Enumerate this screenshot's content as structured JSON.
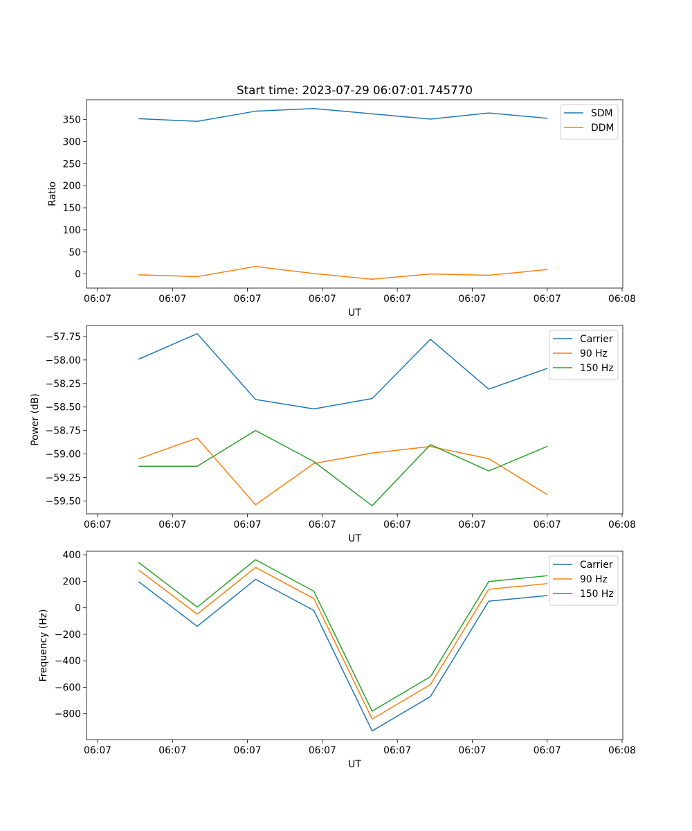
{
  "chart_data": [
    {
      "type": "line",
      "title": "Start time: 2023-07-29 06:07:01.745770",
      "xlabel": "UT",
      "ylabel": "Ratio",
      "x_tick_labels": [
        "06:07",
        "06:07",
        "06:07",
        "06:07",
        "06:07",
        "06:07",
        "06:07",
        "06:08"
      ],
      "y_ticks": [
        0,
        50,
        100,
        150,
        200,
        250,
        300,
        350
      ],
      "y_tick_labels": [
        "0",
        "50",
        "100",
        "150",
        "200",
        "250",
        "300",
        "350"
      ],
      "ylim": [
        -32,
        395
      ],
      "x": [
        1,
        2,
        3,
        4,
        5,
        6,
        7,
        8
      ],
      "xlim": [
        0.1,
        9.3
      ],
      "series": [
        {
          "name": "SDM",
          "color": "#1f77b4",
          "values": [
            352,
            346,
            369,
            375,
            363,
            351,
            365,
            353
          ]
        },
        {
          "name": "DDM",
          "color": "#ff7f0e",
          "values": [
            -2,
            -6,
            17,
            1,
            -12,
            0,
            -3,
            10
          ]
        }
      ],
      "legend": "upper right"
    },
    {
      "type": "line",
      "title": "",
      "xlabel": "UT",
      "ylabel": "Power (dB)",
      "x_tick_labels": [
        "06:07",
        "06:07",
        "06:07",
        "06:07",
        "06:07",
        "06:07",
        "06:07",
        "06:08"
      ],
      "y_ticks": [
        -59.5,
        -59.25,
        -59.0,
        -58.75,
        -58.5,
        -58.25,
        -58.0,
        -57.75
      ],
      "y_tick_labels": [
        "−59.50",
        "−59.25",
        "−59.00",
        "−58.75",
        "−58.50",
        "−58.25",
        "−58.00",
        "−57.75"
      ],
      "ylim": [
        -59.636,
        -57.633
      ],
      "x": [
        1,
        2,
        3,
        4,
        5,
        6,
        7,
        8
      ],
      "xlim": [
        0.1,
        9.3
      ],
      "series": [
        {
          "name": "Carrier",
          "color": "#1f77b4",
          "values": [
            -57.99,
            -57.72,
            -58.42,
            -58.52,
            -58.41,
            -57.78,
            -58.31,
            -58.09
          ]
        },
        {
          "name": "90 Hz",
          "color": "#ff7f0e",
          "values": [
            -59.05,
            -58.83,
            -59.54,
            -59.1,
            -58.99,
            -58.92,
            -59.05,
            -59.43
          ]
        },
        {
          "name": "150 Hz",
          "color": "#2ca02c",
          "values": [
            -59.13,
            -59.13,
            -58.75,
            -59.08,
            -59.55,
            -58.9,
            -59.18,
            -58.92
          ]
        }
      ],
      "legend": "upper right"
    },
    {
      "type": "line",
      "title": "",
      "xlabel": "UT",
      "ylabel": "Frequency (Hz)",
      "x_tick_labels": [
        "06:07",
        "06:07",
        "06:07",
        "06:07",
        "06:07",
        "06:07",
        "06:07",
        "06:08"
      ],
      "y_ticks": [
        -800,
        -600,
        -400,
        -200,
        0,
        200,
        400
      ],
      "y_tick_labels": [
        "−800",
        "−600",
        "−400",
        "−200",
        "0",
        "200",
        "400"
      ],
      "ylim": [
        -995,
        427
      ],
      "x": [
        1,
        2,
        3,
        4,
        5,
        6,
        7,
        8
      ],
      "xlim": [
        0.1,
        9.3
      ],
      "series": [
        {
          "name": "Carrier",
          "color": "#1f77b4",
          "values": [
            195,
            -140,
            215,
            -20,
            -930,
            -670,
            50,
            92
          ]
        },
        {
          "name": "90 Hz",
          "color": "#ff7f0e",
          "values": [
            283,
            -48,
            305,
            70,
            -840,
            -580,
            140,
            182
          ]
        },
        {
          "name": "150 Hz",
          "color": "#2ca02c",
          "values": [
            340,
            5,
            363,
            125,
            -780,
            -520,
            198,
            242
          ]
        }
      ],
      "legend": "upper right"
    }
  ]
}
